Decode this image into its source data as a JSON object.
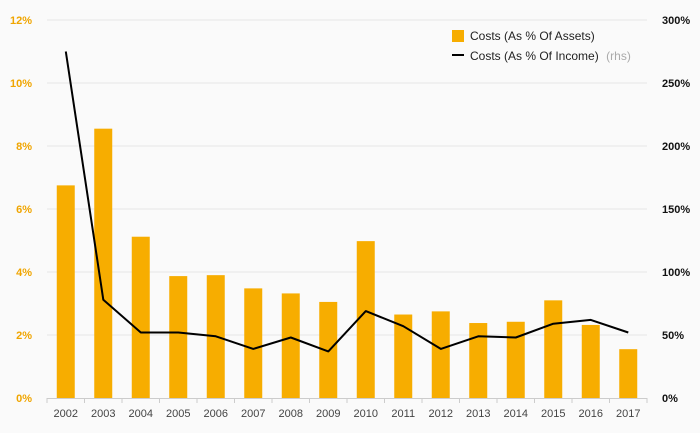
{
  "chart_data": {
    "type": "bar",
    "categories": [
      "2002",
      "2003",
      "2004",
      "2005",
      "2006",
      "2007",
      "2008",
      "2009",
      "2010",
      "2011",
      "2012",
      "2013",
      "2014",
      "2015",
      "2016",
      "2017"
    ],
    "series": [
      {
        "name": "Costs (As % Of Assets)",
        "type": "bar",
        "axis": "left",
        "color": "#f7ad00",
        "values": [
          6.75,
          8.55,
          5.12,
          3.87,
          3.9,
          3.48,
          3.32,
          3.05,
          4.98,
          2.65,
          2.75,
          2.38,
          2.42,
          3.1,
          2.32,
          1.55
        ]
      },
      {
        "name": "Costs (As % Of Income)",
        "note": "(rhs)",
        "type": "line",
        "axis": "right",
        "color": "#000000",
        "values": [
          275,
          78,
          52,
          52,
          49,
          39,
          48,
          37,
          69,
          57,
          39,
          49,
          48,
          59,
          62,
          52
        ]
      }
    ],
    "left_axis": {
      "ylim": [
        0,
        12
      ],
      "ticks": [
        0,
        2,
        4,
        6,
        8,
        10,
        12
      ],
      "tick_labels": [
        "0%",
        "2%",
        "4%",
        "6%",
        "8%",
        "10%",
        "12%"
      ]
    },
    "right_axis": {
      "ylim": [
        0,
        300
      ],
      "ticks": [
        0,
        50,
        100,
        150,
        200,
        250,
        300
      ],
      "tick_labels": [
        "0%",
        "50%",
        "100%",
        "150%",
        "200%",
        "250%",
        "300%"
      ]
    },
    "title": "",
    "xlabel": "",
    "ylabel": "",
    "grid": true,
    "legend_position": "top-right"
  }
}
